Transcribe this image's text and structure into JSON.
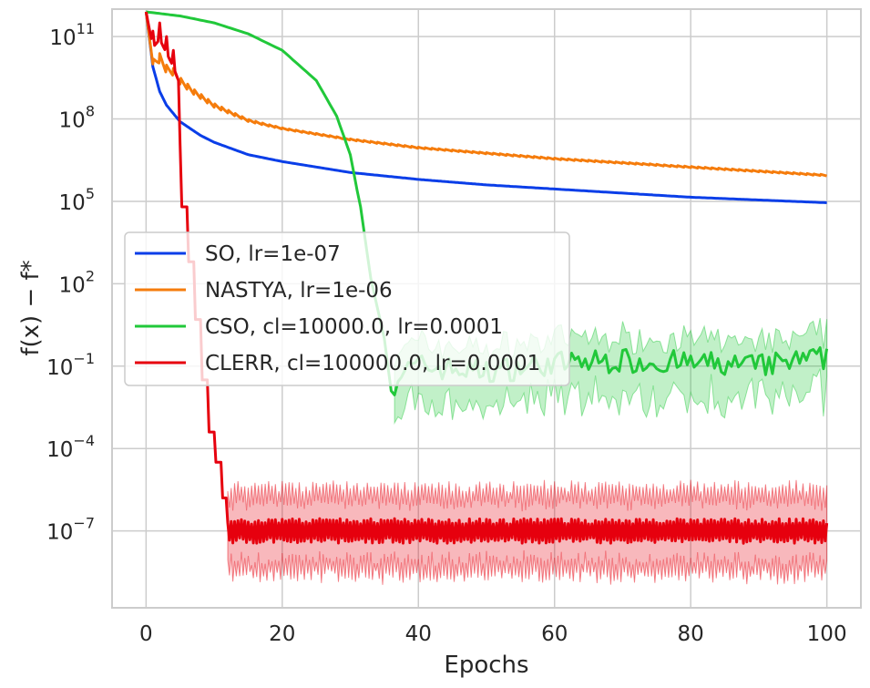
{
  "chart_data": {
    "type": "line",
    "title": "",
    "xlabel": "Epochs",
    "ylabel": "f(x) − f*",
    "xlim": [
      -5,
      105
    ],
    "ylim_log10": [
      -9.8,
      12.0
    ],
    "y_scale": "log",
    "grid": true,
    "legend_position": "center-left",
    "x_ticks": [
      {
        "value": 0,
        "label": "0"
      },
      {
        "value": 20,
        "label": "20"
      },
      {
        "value": 40,
        "label": "40"
      },
      {
        "value": 60,
        "label": "60"
      },
      {
        "value": 80,
        "label": "80"
      },
      {
        "value": 100,
        "label": "100"
      }
    ],
    "y_ticks": [
      {
        "exp": 11,
        "base": "10",
        "sup": "11"
      },
      {
        "exp": 8,
        "base": "10",
        "sup": "8"
      },
      {
        "exp": 5,
        "base": "10",
        "sup": "5"
      },
      {
        "exp": 2,
        "base": "10",
        "sup": "2"
      },
      {
        "exp": -1,
        "base": "10",
        "sup": "−1"
      },
      {
        "exp": -4,
        "base": "10",
        "sup": "−4"
      },
      {
        "exp": -7,
        "base": "10",
        "sup": "−7"
      }
    ],
    "series": [
      {
        "name": "SO, lr=1e-07",
        "color": "#0a3ee8",
        "x": [
          0,
          1,
          2,
          3,
          5,
          8,
          10,
          15,
          20,
          30,
          40,
          50,
          60,
          70,
          80,
          90,
          100
        ],
        "log10_y": [
          11.9,
          9.9,
          9.0,
          8.5,
          7.9,
          7.4,
          7.15,
          6.7,
          6.45,
          6.05,
          5.8,
          5.6,
          5.45,
          5.3,
          5.15,
          5.05,
          4.95
        ]
      },
      {
        "name": "NASTYA, lr=1e-06",
        "color": "#f57c0c",
        "x": [
          0,
          1,
          2,
          3,
          4,
          5,
          7,
          10,
          15,
          20,
          30,
          40,
          50,
          60,
          70,
          80,
          90,
          100
        ],
        "log10_y": [
          11.9,
          10.0,
          10.2,
          9.8,
          9.7,
          9.4,
          9.0,
          8.5,
          7.95,
          7.65,
          7.25,
          6.95,
          6.75,
          6.55,
          6.4,
          6.25,
          6.1,
          5.95
        ],
        "oscillation": "sawtooth, one spike per epoch"
      },
      {
        "name": "CSO, cl=10000.0, lr=0.0001",
        "color": "#21c83a",
        "x": [
          0,
          5,
          10,
          15,
          20,
          25,
          28,
          30,
          31,
          31.5,
          33,
          35,
          36,
          37,
          40,
          50,
          60,
          70,
          80,
          90,
          100
        ],
        "log10_y": [
          11.9,
          11.75,
          11.5,
          11.1,
          10.5,
          9.4,
          8.1,
          6.7,
          5.4,
          4.8,
          2.2,
          0.0,
          -1.9,
          -1.3,
          -1.0,
          -1.2,
          -0.9,
          -0.8,
          -0.9,
          -1.0,
          -0.7
        ],
        "band": "shaded variability band after convergence (about ±1 decade)"
      },
      {
        "name": "CLERR, cl=100000.0, lr=0.0001",
        "color": "#e6000e",
        "x": [
          0,
          1,
          2,
          3,
          4,
          4.9,
          5.1,
          6,
          7,
          8,
          9,
          10,
          11,
          12,
          13,
          20,
          40,
          60,
          80,
          100
        ],
        "log10_y": [
          11.9,
          10.6,
          10.9,
          10.4,
          9.9,
          9.3,
          4.8,
          2.8,
          0.7,
          -1.5,
          -3.4,
          -4.5,
          -5.8,
          -7.0,
          -7.0,
          -7.0,
          -7.0,
          -7.0,
          -7.0,
          -7.0
        ],
        "band": "shaded variability band after convergence (about ±1.5 decades)"
      }
    ]
  }
}
